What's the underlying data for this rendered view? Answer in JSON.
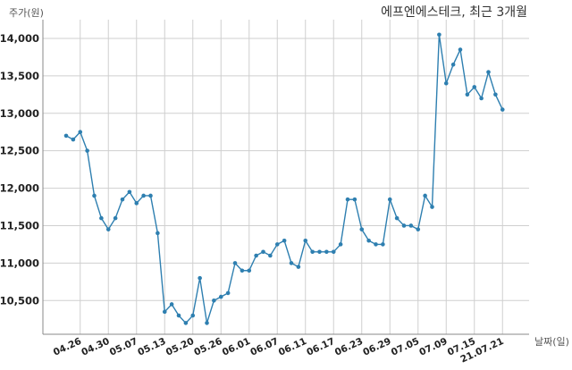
{
  "chart_data": {
    "type": "line",
    "title": "에프엔에스테크, 최근 3개월",
    "ylabel": "주가(원)",
    "xlabel": "날짜(일)",
    "ylim": [
      10050,
      14250
    ],
    "yticks": [
      10500,
      11000,
      11500,
      12000,
      12500,
      13000,
      13500,
      14000
    ],
    "ytick_labels": [
      "10,500",
      "11,000",
      "11,500",
      "12,000",
      "12,500",
      "13,000",
      "13,500",
      "14,000"
    ],
    "xtick_labels": [
      {
        "label": "04.26",
        "index": 2
      },
      {
        "label": "04.30",
        "index": 6
      },
      {
        "label": "05.07",
        "index": 10
      },
      {
        "label": "05.13",
        "index": 14
      },
      {
        "label": "05.20",
        "index": 18
      },
      {
        "label": "05.26",
        "index": 22
      },
      {
        "label": "06.01",
        "index": 26
      },
      {
        "label": "06.07",
        "index": 30
      },
      {
        "label": "06.11",
        "index": 34
      },
      {
        "label": "06.17",
        "index": 38
      },
      {
        "label": "06.23",
        "index": 42
      },
      {
        "label": "06.29",
        "index": 46
      },
      {
        "label": "07.05",
        "index": 50
      },
      {
        "label": "07.09",
        "index": 54
      },
      {
        "label": "07.15",
        "index": 58
      },
      {
        "label": "21.07.21",
        "index": 62
      }
    ],
    "grid": true,
    "series": [
      {
        "color": "#2e7fb0",
        "values": [
          12700,
          12650,
          12750,
          12500,
          11900,
          11600,
          11450,
          11600,
          11850,
          11950,
          11800,
          11900,
          11900,
          11400,
          10350,
          10450,
          10300,
          10200,
          10300,
          10800,
          10200,
          10500,
          10550,
          10600,
          11000,
          10900,
          10900,
          11100,
          11150,
          11100,
          11250,
          11300,
          11000,
          10950,
          11300,
          11150,
          11150,
          11150,
          11150,
          11250,
          11850,
          11850,
          11450,
          11300,
          11250,
          11250,
          11850,
          11600,
          11500,
          11500,
          11450,
          11900,
          11750,
          14050,
          13400,
          13650,
          13850,
          13250,
          13350,
          13200,
          13550,
          13250,
          13050
        ]
      }
    ]
  }
}
